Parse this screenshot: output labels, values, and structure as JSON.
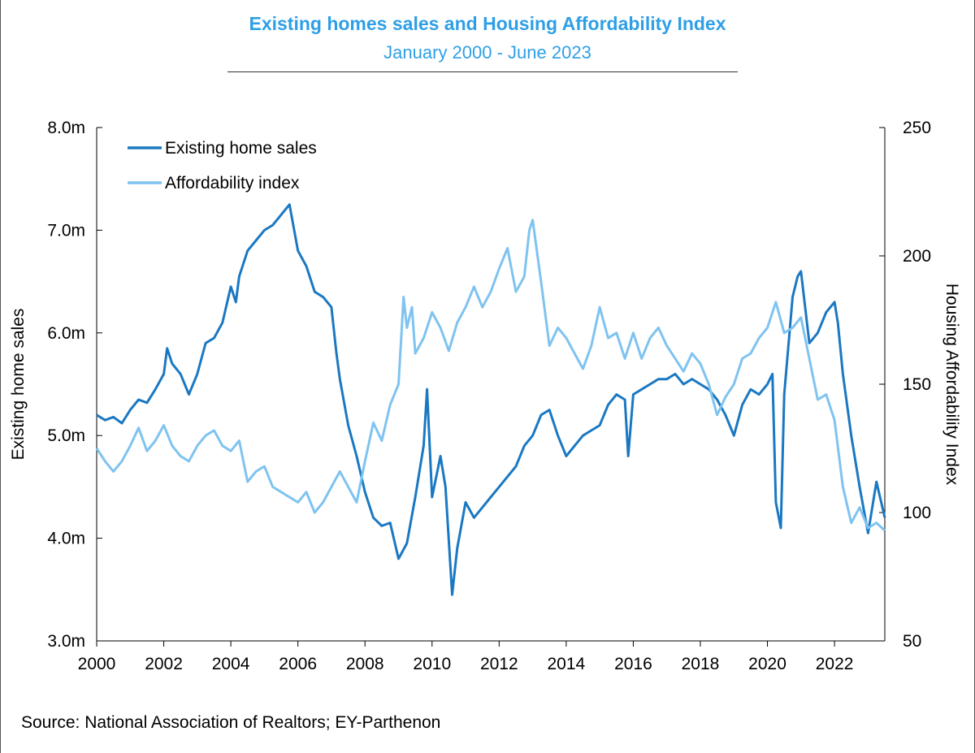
{
  "chart_data": {
    "type": "line",
    "title": "Existing homes sales and Housing Affordability Index",
    "subtitle": "January 2000 - June 2023",
    "ylabel_left": "Existing home sales",
    "ylabel_right": "Housing Affordability Index",
    "x_range": [
      2000.0,
      2023.5
    ],
    "x_ticks": [
      "2000",
      "2002",
      "2004",
      "2006",
      "2008",
      "2010",
      "2012",
      "2014",
      "2016",
      "2018",
      "2020",
      "2022"
    ],
    "y_left_range": [
      3.0,
      8.0
    ],
    "y_left_ticks": [
      "3.0m",
      "4.0m",
      "5.0m",
      "6.0m",
      "7.0m",
      "8.0m"
    ],
    "y_right_range": [
      50,
      250
    ],
    "y_right_ticks": [
      "50",
      "100",
      "150",
      "200",
      "250"
    ],
    "grid": false,
    "legend_position": "top-left",
    "series": [
      {
        "name": "Existing home sales",
        "axis": "left",
        "color": "#1a78c2",
        "points": [
          [
            2000.0,
            5.2
          ],
          [
            2000.25,
            5.15
          ],
          [
            2000.5,
            5.18
          ],
          [
            2000.75,
            5.12
          ],
          [
            2001.0,
            5.25
          ],
          [
            2001.25,
            5.35
          ],
          [
            2001.5,
            5.32
          ],
          [
            2001.75,
            5.45
          ],
          [
            2002.0,
            5.6
          ],
          [
            2002.1,
            5.85
          ],
          [
            2002.25,
            5.7
          ],
          [
            2002.5,
            5.6
          ],
          [
            2002.75,
            5.4
          ],
          [
            2003.0,
            5.6
          ],
          [
            2003.25,
            5.9
          ],
          [
            2003.5,
            5.95
          ],
          [
            2003.75,
            6.1
          ],
          [
            2004.0,
            6.45
          ],
          [
            2004.15,
            6.3
          ],
          [
            2004.25,
            6.55
          ],
          [
            2004.5,
            6.8
          ],
          [
            2004.75,
            6.9
          ],
          [
            2005.0,
            7.0
          ],
          [
            2005.25,
            7.05
          ],
          [
            2005.5,
            7.15
          ],
          [
            2005.75,
            7.25
          ],
          [
            2006.0,
            6.8
          ],
          [
            2006.25,
            6.65
          ],
          [
            2006.5,
            6.4
          ],
          [
            2006.75,
            6.35
          ],
          [
            2007.0,
            6.25
          ],
          [
            2007.15,
            5.8
          ],
          [
            2007.25,
            5.55
          ],
          [
            2007.5,
            5.1
          ],
          [
            2007.75,
            4.8
          ],
          [
            2008.0,
            4.45
          ],
          [
            2008.25,
            4.2
          ],
          [
            2008.5,
            4.12
          ],
          [
            2008.75,
            4.15
          ],
          [
            2009.0,
            3.8
          ],
          [
            2009.25,
            3.95
          ],
          [
            2009.5,
            4.4
          ],
          [
            2009.75,
            4.9
          ],
          [
            2009.85,
            5.45
          ],
          [
            2010.0,
            4.4
          ],
          [
            2010.25,
            4.8
          ],
          [
            2010.4,
            4.5
          ],
          [
            2010.6,
            3.45
          ],
          [
            2010.75,
            3.9
          ],
          [
            2011.0,
            4.35
          ],
          [
            2011.25,
            4.2
          ],
          [
            2011.5,
            4.3
          ],
          [
            2011.75,
            4.4
          ],
          [
            2012.0,
            4.5
          ],
          [
            2012.25,
            4.6
          ],
          [
            2012.5,
            4.7
          ],
          [
            2012.75,
            4.9
          ],
          [
            2013.0,
            5.0
          ],
          [
            2013.25,
            5.2
          ],
          [
            2013.5,
            5.25
          ],
          [
            2013.75,
            5.0
          ],
          [
            2014.0,
            4.8
          ],
          [
            2014.25,
            4.9
          ],
          [
            2014.5,
            5.0
          ],
          [
            2014.75,
            5.05
          ],
          [
            2015.0,
            5.1
          ],
          [
            2015.25,
            5.3
          ],
          [
            2015.5,
            5.4
          ],
          [
            2015.75,
            5.35
          ],
          [
            2015.85,
            4.8
          ],
          [
            2016.0,
            5.4
          ],
          [
            2016.25,
            5.45
          ],
          [
            2016.5,
            5.5
          ],
          [
            2016.75,
            5.55
          ],
          [
            2017.0,
            5.55
          ],
          [
            2017.25,
            5.6
          ],
          [
            2017.5,
            5.5
          ],
          [
            2017.75,
            5.55
          ],
          [
            2018.0,
            5.5
          ],
          [
            2018.25,
            5.45
          ],
          [
            2018.5,
            5.35
          ],
          [
            2018.75,
            5.2
          ],
          [
            2019.0,
            5.0
          ],
          [
            2019.25,
            5.3
          ],
          [
            2019.5,
            5.45
          ],
          [
            2019.75,
            5.4
          ],
          [
            2020.0,
            5.5
          ],
          [
            2020.15,
            5.6
          ],
          [
            2020.25,
            4.35
          ],
          [
            2020.4,
            4.1
          ],
          [
            2020.5,
            5.4
          ],
          [
            2020.75,
            6.35
          ],
          [
            2020.9,
            6.55
          ],
          [
            2021.0,
            6.6
          ],
          [
            2021.25,
            5.9
          ],
          [
            2021.5,
            6.0
          ],
          [
            2021.75,
            6.2
          ],
          [
            2022.0,
            6.3
          ],
          [
            2022.1,
            6.1
          ],
          [
            2022.25,
            5.6
          ],
          [
            2022.5,
            5.0
          ],
          [
            2022.75,
            4.5
          ],
          [
            2023.0,
            4.05
          ],
          [
            2023.25,
            4.55
          ],
          [
            2023.5,
            4.2
          ]
        ]
      },
      {
        "name": "Affordability index",
        "axis": "right",
        "color": "#7fc3f0",
        "points": [
          [
            2000.0,
            125
          ],
          [
            2000.25,
            120
          ],
          [
            2000.5,
            116
          ],
          [
            2000.75,
            120
          ],
          [
            2001.0,
            126
          ],
          [
            2001.25,
            133
          ],
          [
            2001.5,
            124
          ],
          [
            2001.75,
            128
          ],
          [
            2002.0,
            134
          ],
          [
            2002.25,
            126
          ],
          [
            2002.5,
            122
          ],
          [
            2002.75,
            120
          ],
          [
            2003.0,
            126
          ],
          [
            2003.25,
            130
          ],
          [
            2003.5,
            132
          ],
          [
            2003.75,
            126
          ],
          [
            2004.0,
            124
          ],
          [
            2004.25,
            128
          ],
          [
            2004.5,
            112
          ],
          [
            2004.75,
            116
          ],
          [
            2005.0,
            118
          ],
          [
            2005.25,
            110
          ],
          [
            2005.5,
            108
          ],
          [
            2005.75,
            106
          ],
          [
            2006.0,
            104
          ],
          [
            2006.25,
            108
          ],
          [
            2006.5,
            100
          ],
          [
            2006.75,
            104
          ],
          [
            2007.0,
            110
          ],
          [
            2007.25,
            116
          ],
          [
            2007.5,
            110
          ],
          [
            2007.75,
            104
          ],
          [
            2008.0,
            120
          ],
          [
            2008.25,
            135
          ],
          [
            2008.5,
            128
          ],
          [
            2008.75,
            142
          ],
          [
            2009.0,
            150
          ],
          [
            2009.15,
            184
          ],
          [
            2009.25,
            172
          ],
          [
            2009.4,
            180
          ],
          [
            2009.5,
            162
          ],
          [
            2009.75,
            168
          ],
          [
            2010.0,
            178
          ],
          [
            2010.25,
            172
          ],
          [
            2010.5,
            163
          ],
          [
            2010.75,
            174
          ],
          [
            2011.0,
            180
          ],
          [
            2011.25,
            188
          ],
          [
            2011.5,
            180
          ],
          [
            2011.75,
            186
          ],
          [
            2012.0,
            195
          ],
          [
            2012.25,
            203
          ],
          [
            2012.5,
            186
          ],
          [
            2012.75,
            192
          ],
          [
            2012.9,
            210
          ],
          [
            2013.0,
            214
          ],
          [
            2013.25,
            190
          ],
          [
            2013.5,
            165
          ],
          [
            2013.75,
            172
          ],
          [
            2014.0,
            168
          ],
          [
            2014.25,
            162
          ],
          [
            2014.5,
            156
          ],
          [
            2014.75,
            165
          ],
          [
            2015.0,
            180
          ],
          [
            2015.25,
            168
          ],
          [
            2015.5,
            170
          ],
          [
            2015.75,
            160
          ],
          [
            2016.0,
            170
          ],
          [
            2016.25,
            160
          ],
          [
            2016.5,
            168
          ],
          [
            2016.75,
            172
          ],
          [
            2017.0,
            165
          ],
          [
            2017.25,
            160
          ],
          [
            2017.5,
            155
          ],
          [
            2017.75,
            162
          ],
          [
            2018.0,
            158
          ],
          [
            2018.25,
            150
          ],
          [
            2018.5,
            138
          ],
          [
            2018.75,
            145
          ],
          [
            2019.0,
            150
          ],
          [
            2019.25,
            160
          ],
          [
            2019.5,
            162
          ],
          [
            2019.75,
            168
          ],
          [
            2020.0,
            172
          ],
          [
            2020.25,
            182
          ],
          [
            2020.5,
            170
          ],
          [
            2020.75,
            172
          ],
          [
            2021.0,
            176
          ],
          [
            2021.25,
            160
          ],
          [
            2021.5,
            144
          ],
          [
            2021.75,
            146
          ],
          [
            2022.0,
            136
          ],
          [
            2022.25,
            110
          ],
          [
            2022.5,
            96
          ],
          [
            2022.75,
            102
          ],
          [
            2023.0,
            94
          ],
          [
            2023.25,
            96
          ],
          [
            2023.5,
            93
          ]
        ]
      }
    ]
  },
  "footer": {
    "source": "Source: National Association of Realtors; EY-Parthenon"
  }
}
